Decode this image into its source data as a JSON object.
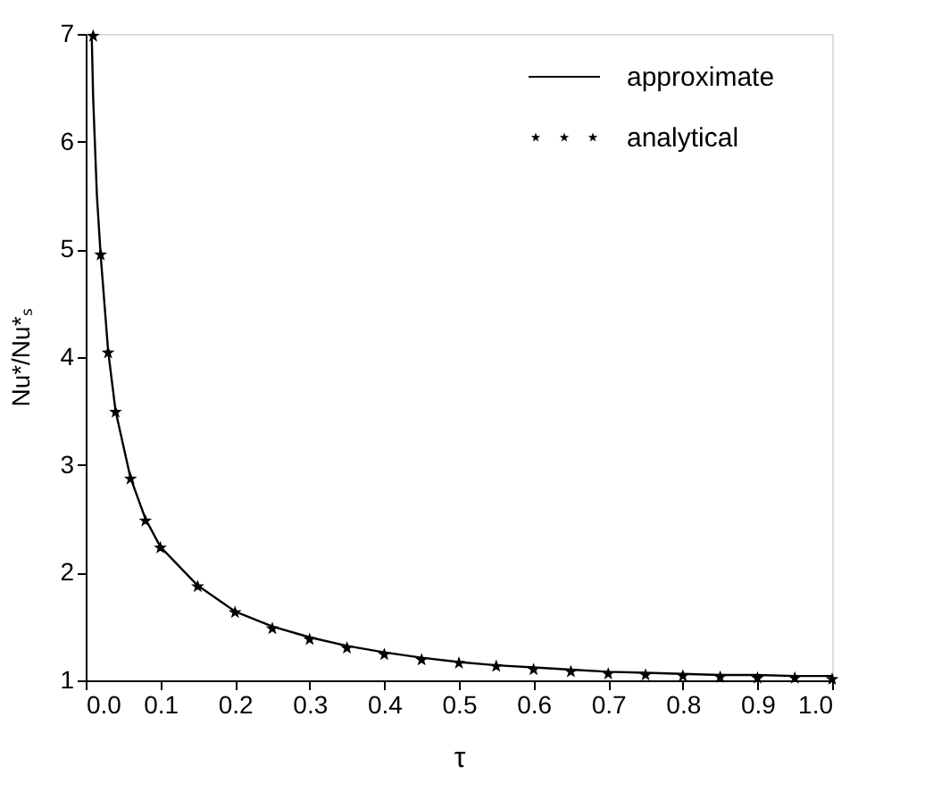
{
  "chart_data": {
    "type": "line",
    "xlabel": "τ",
    "ylabel": "Nu*/Nu*ₛ",
    "xlim": [
      0.0,
      1.0
    ],
    "ylim": [
      1,
      7
    ],
    "xticks": [
      {
        "value": 0.0,
        "label": "0.0"
      },
      0.1,
      0.2,
      0.3,
      0.4,
      0.5,
      0.6,
      0.7,
      0.8,
      0.9,
      {
        "value": 1.0,
        "label": "1.0"
      }
    ],
    "yticks": [
      {
        "value": 1,
        "label": "1"
      },
      {
        "value": 2,
        "label": "2"
      },
      {
        "value": 3,
        "label": "3"
      },
      {
        "value": 4,
        "label": "4"
      },
      {
        "value": 5,
        "label": "5"
      },
      {
        "value": 6,
        "label": "6"
      },
      {
        "value": 7,
        "label": "7"
      }
    ],
    "grid": false,
    "legend": "top right",
    "series": [
      {
        "name": "approximate",
        "color": "#000000",
        "line_style": "solid",
        "marker": "none",
        "x": [
          0.008,
          0.01,
          0.015,
          0.02,
          0.03,
          0.04,
          0.06,
          0.08,
          0.1,
          0.15,
          0.2,
          0.25,
          0.3,
          0.35,
          0.4,
          0.45,
          0.5,
          0.55,
          0.6,
          0.65,
          0.7,
          0.75,
          0.8,
          0.85,
          0.9,
          0.95,
          1.0
        ],
        "values": [
          7.0,
          6.4,
          5.5,
          4.95,
          4.06,
          3.5,
          2.88,
          2.5,
          2.24,
          1.88,
          1.64,
          1.5,
          1.4,
          1.32,
          1.26,
          1.21,
          1.17,
          1.14,
          1.12,
          1.1,
          1.08,
          1.07,
          1.06,
          1.05,
          1.05,
          1.04,
          1.04
        ]
      },
      {
        "name": "analytical",
        "type": "scatter",
        "color": "#000000",
        "marker": "star",
        "x": [
          0.01,
          0.02,
          0.03,
          0.04,
          0.06,
          0.08,
          0.1,
          0.15,
          0.2,
          0.25,
          0.3,
          0.35,
          0.4,
          0.45,
          0.5,
          0.55,
          0.6,
          0.65,
          0.7,
          0.75,
          0.8,
          0.85,
          0.9,
          0.95,
          1.0
        ],
        "values": [
          6.98,
          4.95,
          4.04,
          3.49,
          2.87,
          2.48,
          2.23,
          1.87,
          1.63,
          1.48,
          1.38,
          1.3,
          1.24,
          1.19,
          1.16,
          1.13,
          1.1,
          1.08,
          1.06,
          1.05,
          1.04,
          1.03,
          1.02,
          1.02,
          1.01
        ]
      }
    ]
  }
}
